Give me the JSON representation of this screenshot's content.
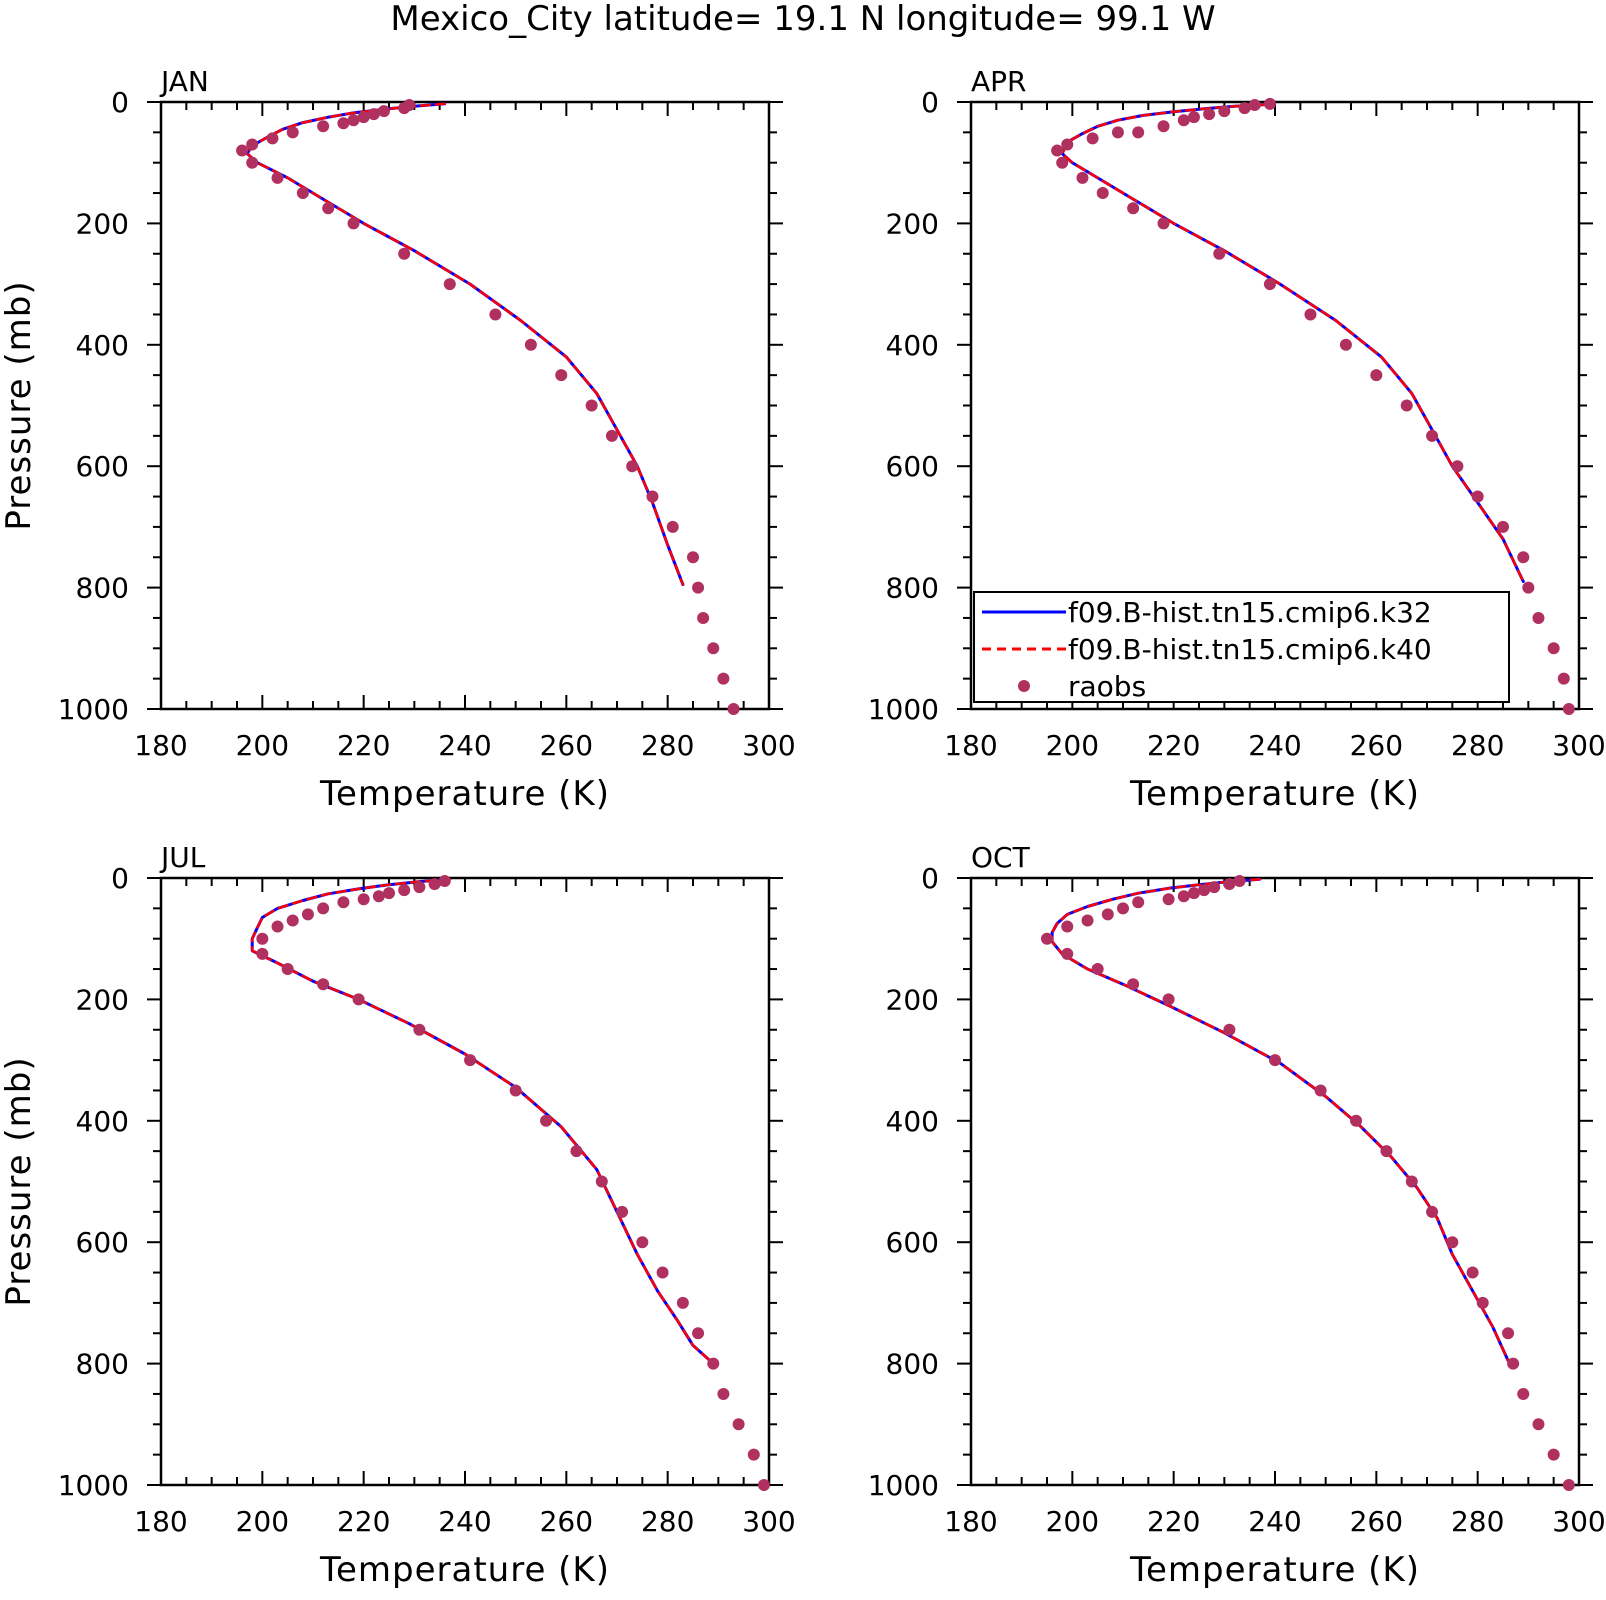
{
  "figure": {
    "title": "Mexico_City  latitude= 19.1 N longitude= 99.1 W"
  },
  "chart_data": [
    {
      "type": "line",
      "panel": "JAN",
      "xlabel": "Temperature (K)",
      "ylabel": "Pressure (mb)",
      "xlim": [
        180,
        300
      ],
      "ylim": [
        1000,
        0
      ],
      "y_inverted": true,
      "xticks": [
        "180",
        "200",
        "220",
        "240",
        "260",
        "280",
        "300"
      ],
      "yticks": [
        "0",
        "200",
        "400",
        "600",
        "800",
        "1000"
      ],
      "grid": false,
      "legend": false,
      "series": [
        {
          "name": "f09.B-hist.tn15.cmip6.k32",
          "color": "#0000ff",
          "style": "solid",
          "x": [
            236,
            230,
            224,
            218,
            213,
            208,
            204,
            201,
            198,
            197,
            199,
            205,
            212,
            220,
            230,
            241,
            251,
            260,
            266,
            270,
            274,
            277,
            280,
            283
          ],
          "y": [
            3,
            7,
            12,
            18,
            25,
            34,
            45,
            58,
            72,
            85,
            100,
            125,
            160,
            200,
            245,
            300,
            360,
            420,
            480,
            540,
            600,
            660,
            730,
            795
          ]
        },
        {
          "name": "f09.B-hist.tn15.cmip6.k40",
          "color": "#ff0000",
          "style": "dashed",
          "x": [
            236,
            230,
            224,
            218,
            213,
            208,
            204,
            201,
            198,
            197,
            199,
            205,
            212,
            220,
            230,
            241,
            251,
            260,
            266,
            270,
            274,
            277,
            280,
            283
          ],
          "y": [
            3,
            7,
            12,
            18,
            25,
            34,
            45,
            58,
            72,
            85,
            100,
            125,
            160,
            200,
            245,
            300,
            360,
            420,
            480,
            540,
            600,
            660,
            730,
            795
          ]
        },
        {
          "name": "raobs",
          "color": "#b03060",
          "style": "dots",
          "x": [
            229,
            228,
            224,
            222,
            220,
            218,
            216,
            212,
            206,
            202,
            198,
            196,
            198,
            203,
            208,
            213,
            218,
            228,
            237,
            246,
            253,
            259,
            265,
            269,
            273,
            277,
            281,
            285,
            286,
            287,
            289,
            291,
            293
          ],
          "y": [
            5,
            10,
            15,
            20,
            25,
            30,
            35,
            40,
            50,
            60,
            70,
            80,
            100,
            125,
            150,
            175,
            200,
            250,
            300,
            350,
            400,
            450,
            500,
            550,
            600,
            650,
            700,
            750,
            800,
            850,
            900,
            950,
            1000
          ]
        }
      ]
    },
    {
      "type": "line",
      "panel": "APR",
      "xlabel": "Temperature (K)",
      "ylabel": "",
      "xlim": [
        180,
        300
      ],
      "ylim": [
        1000,
        0
      ],
      "y_inverted": true,
      "xticks": [
        "180",
        "200",
        "220",
        "240",
        "260",
        "280",
        "300"
      ],
      "yticks": [
        "0",
        "200",
        "400",
        "600",
        "800",
        "1000"
      ],
      "grid": false,
      "legend": true,
      "legend_position": "bottom-left",
      "series": [
        {
          "name": "f09.B-hist.tn15.cmip6.k32",
          "color": "#0000ff",
          "style": "solid",
          "x": [
            239,
            232,
            226,
            220,
            214,
            209,
            205,
            202,
            199,
            198,
            200,
            205,
            212,
            220,
            230,
            241,
            252,
            261,
            267,
            271,
            275,
            280,
            285,
            289
          ],
          "y": [
            4,
            7,
            11,
            16,
            22,
            30,
            40,
            52,
            66,
            85,
            100,
            125,
            160,
            200,
            245,
            300,
            360,
            420,
            480,
            540,
            600,
            660,
            720,
            790
          ]
        },
        {
          "name": "f09.B-hist.tn15.cmip6.k40",
          "color": "#ff0000",
          "style": "dashed",
          "x": [
            239,
            232,
            226,
            220,
            214,
            209,
            205,
            202,
            199,
            198,
            200,
            205,
            212,
            220,
            230,
            241,
            252,
            261,
            267,
            271,
            275,
            280,
            285,
            289
          ],
          "y": [
            4,
            7,
            11,
            16,
            22,
            30,
            40,
            52,
            66,
            85,
            100,
            125,
            160,
            200,
            245,
            300,
            360,
            420,
            480,
            540,
            600,
            660,
            720,
            790
          ]
        },
        {
          "name": "raobs",
          "color": "#b03060",
          "style": "dots",
          "x": [
            239,
            236,
            234,
            230,
            227,
            224,
            222,
            218,
            213,
            209,
            204,
            199,
            197,
            198,
            202,
            206,
            212,
            218,
            229,
            239,
            247,
            254,
            260,
            266,
            271,
            276,
            280,
            285,
            289,
            290,
            292,
            295,
            297,
            298
          ],
          "y": [
            3,
            5,
            10,
            15,
            20,
            25,
            30,
            40,
            50,
            50,
            60,
            70,
            80,
            100,
            125,
            150,
            175,
            200,
            250,
            300,
            350,
            400,
            450,
            500,
            550,
            600,
            650,
            700,
            750,
            800,
            850,
            900,
            950,
            1000
          ]
        }
      ]
    },
    {
      "type": "line",
      "panel": "JUL",
      "xlabel": "Temperature (K)",
      "ylabel": "Pressure (mb)",
      "xlim": [
        180,
        300
      ],
      "ylim": [
        1000,
        0
      ],
      "y_inverted": true,
      "xticks": [
        "180",
        "200",
        "220",
        "240",
        "260",
        "280",
        "300"
      ],
      "yticks": [
        "0",
        "200",
        "400",
        "600",
        "800",
        "1000"
      ],
      "grid": false,
      "legend": false,
      "series": [
        {
          "name": "f09.B-hist.tn15.cmip6.k32",
          "color": "#0000ff",
          "style": "solid",
          "x": [
            237,
            231,
            225,
            219,
            213,
            208,
            203,
            200,
            199,
            198,
            198,
            203,
            210,
            219,
            229,
            240,
            250,
            259,
            266,
            270,
            274,
            278,
            282,
            285,
            289
          ],
          "y": [
            2,
            6,
            11,
            18,
            26,
            37,
            50,
            65,
            82,
            100,
            120,
            140,
            170,
            200,
            240,
            290,
            345,
            410,
            480,
            550,
            620,
            680,
            730,
            770,
            800
          ]
        },
        {
          "name": "f09.B-hist.tn15.cmip6.k40",
          "color": "#ff0000",
          "style": "dashed",
          "x": [
            237,
            231,
            225,
            219,
            213,
            208,
            203,
            200,
            199,
            198,
            198,
            203,
            210,
            219,
            229,
            240,
            250,
            259,
            266,
            270,
            274,
            278,
            282,
            285,
            289
          ],
          "y": [
            2,
            6,
            11,
            18,
            26,
            37,
            50,
            65,
            82,
            100,
            120,
            140,
            170,
            200,
            240,
            290,
            345,
            410,
            480,
            550,
            620,
            680,
            730,
            770,
            800
          ]
        },
        {
          "name": "raobs",
          "color": "#b03060",
          "style": "dots",
          "x": [
            236,
            234,
            231,
            228,
            225,
            223,
            220,
            216,
            212,
            209,
            206,
            203,
            200,
            200,
            205,
            212,
            219,
            231,
            241,
            250,
            256,
            262,
            267,
            271,
            275,
            279,
            283,
            286,
            289,
            291,
            294,
            297,
            299
          ],
          "y": [
            5,
            10,
            15,
            20,
            25,
            30,
            35,
            40,
            50,
            60,
            70,
            80,
            100,
            125,
            150,
            175,
            200,
            250,
            300,
            350,
            400,
            450,
            500,
            550,
            600,
            650,
            700,
            750,
            800,
            850,
            900,
            950,
            1000
          ]
        }
      ]
    },
    {
      "type": "line",
      "panel": "OCT",
      "xlabel": "Temperature (K)",
      "ylabel": "",
      "xlim": [
        180,
        300
      ],
      "ylim": [
        1000,
        0
      ],
      "y_inverted": true,
      "xticks": [
        "180",
        "200",
        "220",
        "240",
        "260",
        "280",
        "300"
      ],
      "yticks": [
        "0",
        "200",
        "400",
        "600",
        "800",
        "1000"
      ],
      "grid": false,
      "legend": false,
      "series": [
        {
          "name": "f09.B-hist.tn15.cmip6.k32",
          "color": "#0000ff",
          "style": "solid",
          "x": [
            237,
            231,
            225,
            219,
            213,
            208,
            203,
            199,
            197,
            196,
            196,
            198,
            203,
            210,
            219,
            230,
            241,
            250,
            257,
            263,
            268,
            272,
            275,
            279,
            283,
            286
          ],
          "y": [
            2,
            6,
            11,
            17,
            25,
            35,
            47,
            60,
            75,
            90,
            105,
            125,
            150,
            175,
            210,
            255,
            305,
            360,
            410,
            460,
            510,
            560,
            620,
            680,
            740,
            795
          ]
        },
        {
          "name": "f09.B-hist.tn15.cmip6.k40",
          "color": "#ff0000",
          "style": "dashed",
          "x": [
            237,
            231,
            225,
            219,
            213,
            208,
            203,
            199,
            197,
            196,
            196,
            198,
            203,
            210,
            219,
            230,
            241,
            250,
            257,
            263,
            268,
            272,
            275,
            279,
            283,
            286
          ],
          "y": [
            2,
            6,
            11,
            17,
            25,
            35,
            47,
            60,
            75,
            90,
            105,
            125,
            150,
            175,
            210,
            255,
            305,
            360,
            410,
            460,
            510,
            560,
            620,
            680,
            740,
            795
          ]
        },
        {
          "name": "raobs",
          "color": "#b03060",
          "style": "dots",
          "x": [
            233,
            231,
            228,
            226,
            224,
            222,
            219,
            213,
            210,
            207,
            203,
            199,
            195,
            199,
            205,
            212,
            219,
            231,
            240,
            249,
            256,
            262,
            267,
            271,
            275,
            279,
            281,
            286,
            287,
            289,
            292,
            295,
            298
          ],
          "y": [
            5,
            10,
            15,
            20,
            25,
            30,
            35,
            40,
            50,
            60,
            70,
            80,
            100,
            125,
            150,
            175,
            200,
            250,
            300,
            350,
            400,
            450,
            500,
            550,
            600,
            650,
            700,
            750,
            800,
            850,
            900,
            950,
            1000
          ]
        }
      ]
    }
  ]
}
